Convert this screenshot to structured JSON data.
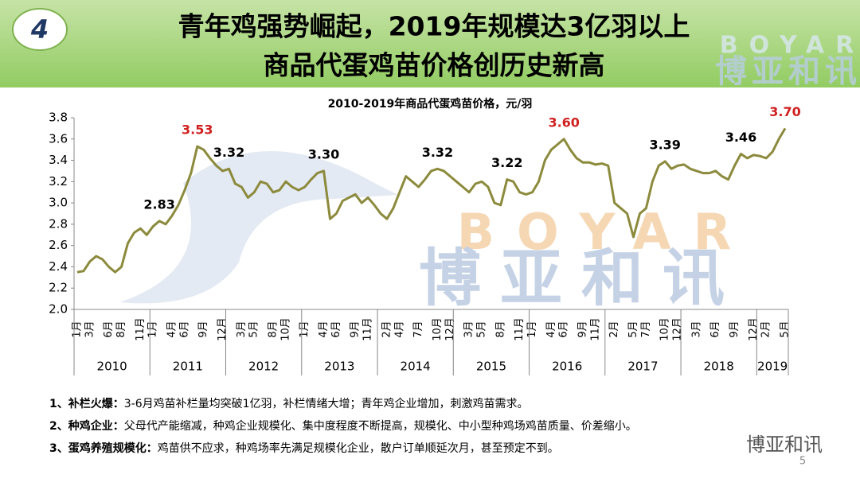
{
  "header": {
    "number": "4",
    "title_line1": "青年鸡强势崛起，2019年规模达3亿羽以上",
    "title_line2": "商品代蛋鸡苗价格创历史新高",
    "logo_en": "BOYAR",
    "logo_cn": "博亚和讯"
  },
  "watermark": {
    "en": "BOYAR",
    "cn": "博亚和讯"
  },
  "chart_data": {
    "type": "line",
    "title": "2010-2019年商品代蛋鸡苗价格，元/羽",
    "categories": [
      "1月",
      null,
      "3月",
      null,
      null,
      "6月",
      null,
      "8月",
      null,
      null,
      "11月",
      null,
      "1月",
      null,
      null,
      "4月",
      null,
      "6月",
      null,
      null,
      "9月",
      null,
      null,
      "12月",
      null,
      null,
      "3月",
      null,
      "5月",
      null,
      null,
      "8月",
      null,
      "10月",
      null,
      null,
      "1月",
      null,
      null,
      "4月",
      null,
      "6月",
      null,
      null,
      "9月",
      null,
      "11月",
      null,
      null,
      "2月",
      null,
      "4月",
      null,
      null,
      "7月",
      null,
      null,
      "10月",
      null,
      "12月",
      null,
      null,
      "3月",
      null,
      "5月",
      null,
      null,
      "8月",
      null,
      null,
      "11月",
      null,
      "1月",
      null,
      null,
      "4月",
      null,
      "6月",
      null,
      null,
      "9月",
      null,
      "11月",
      null,
      null,
      "2月",
      null,
      null,
      "5月",
      null,
      "7月",
      null,
      null,
      "10月",
      null,
      "12月",
      null,
      null,
      "3月",
      null,
      null,
      "6月",
      null,
      null,
      "9月",
      null,
      null,
      "12月",
      null,
      "2月",
      null,
      null,
      "5月"
    ],
    "groups": [
      {
        "label": "2010",
        "size": 12
      },
      {
        "label": "2011",
        "size": 12
      },
      {
        "label": "2012",
        "size": 12
      },
      {
        "label": "2013",
        "size": 12
      },
      {
        "label": "2014",
        "size": 12
      },
      {
        "label": "2015",
        "size": 12
      },
      {
        "label": "2016",
        "size": 12
      },
      {
        "label": "2017",
        "size": 12
      },
      {
        "label": "2018",
        "size": 12
      },
      {
        "label": "2019",
        "size": 5
      }
    ],
    "values": [
      2.35,
      2.36,
      2.45,
      2.5,
      2.47,
      2.4,
      2.35,
      2.4,
      2.62,
      2.72,
      2.76,
      2.7,
      2.78,
      2.83,
      2.8,
      2.88,
      2.98,
      3.12,
      3.28,
      3.53,
      3.5,
      3.42,
      3.35,
      3.3,
      3.32,
      3.18,
      3.15,
      3.05,
      3.1,
      3.2,
      3.18,
      3.1,
      3.12,
      3.2,
      3.15,
      3.12,
      3.15,
      3.22,
      3.28,
      3.3,
      2.85,
      2.9,
      3.02,
      3.05,
      3.08,
      3.0,
      3.05,
      2.98,
      2.9,
      2.85,
      2.95,
      3.1,
      3.25,
      3.2,
      3.15,
      3.22,
      3.3,
      3.32,
      3.3,
      3.25,
      3.2,
      3.15,
      3.1,
      3.18,
      3.2,
      3.15,
      3.0,
      2.98,
      3.22,
      3.2,
      3.1,
      3.08,
      3.1,
      3.2,
      3.4,
      3.5,
      3.55,
      3.6,
      3.5,
      3.42,
      3.38,
      3.38,
      3.36,
      3.37,
      3.35,
      3.0,
      2.95,
      2.9,
      2.68,
      2.9,
      2.95,
      3.2,
      3.35,
      3.39,
      3.32,
      3.35,
      3.36,
      3.32,
      3.3,
      3.28,
      3.28,
      3.3,
      3.25,
      3.22,
      3.35,
      3.46,
      3.42,
      3.45,
      3.44,
      3.42,
      3.48,
      3.6,
      3.7
    ],
    "value_labels": [
      null,
      null,
      null,
      null,
      null,
      null,
      null,
      null,
      null,
      null,
      null,
      null,
      null,
      "2.83",
      null,
      null,
      null,
      null,
      null,
      "3.53",
      null,
      null,
      null,
      null,
      "3.32",
      null,
      null,
      null,
      null,
      null,
      null,
      null,
      null,
      null,
      null,
      null,
      null,
      null,
      null,
      "3.30",
      null,
      null,
      null,
      null,
      null,
      null,
      null,
      null,
      null,
      null,
      null,
      null,
      null,
      null,
      null,
      null,
      null,
      "3.32",
      null,
      null,
      null,
      null,
      null,
      null,
      null,
      null,
      null,
      null,
      "3.22",
      null,
      null,
      null,
      null,
      null,
      null,
      null,
      null,
      "3.60",
      null,
      null,
      null,
      null,
      null,
      null,
      null,
      null,
      null,
      null,
      null,
      null,
      null,
      null,
      null,
      "3.39",
      null,
      null,
      null,
      null,
      null,
      null,
      null,
      null,
      null,
      null,
      null,
      "3.46",
      null,
      null,
      null,
      null,
      null,
      null,
      "3.70"
    ],
    "value_label_colors": [
      null,
      null,
      null,
      null,
      null,
      null,
      null,
      null,
      null,
      null,
      null,
      null,
      null,
      "#000000",
      null,
      null,
      null,
      null,
      null,
      "#d02020",
      null,
      null,
      null,
      null,
      "#000000",
      null,
      null,
      null,
      null,
      null,
      null,
      null,
      null,
      null,
      null,
      null,
      null,
      null,
      null,
      "#000000",
      null,
      null,
      null,
      null,
      null,
      null,
      null,
      null,
      null,
      null,
      null,
      null,
      null,
      null,
      null,
      null,
      null,
      "#000000",
      null,
      null,
      null,
      null,
      null,
      null,
      null,
      null,
      null,
      null,
      "#000000",
      null,
      null,
      null,
      null,
      null,
      null,
      null,
      null,
      "#d02020",
      null,
      null,
      null,
      null,
      null,
      null,
      null,
      null,
      null,
      null,
      null,
      null,
      null,
      null,
      null,
      "#000000",
      null,
      null,
      null,
      null,
      null,
      null,
      null,
      null,
      null,
      null,
      null,
      "#000000",
      null,
      null,
      null,
      null,
      null,
      null,
      "#d02020"
    ],
    "color": "#8c8a3c",
    "ylim": [
      2.0,
      3.8
    ],
    "yticks": [
      {
        "value": 2,
        "label": "2.0"
      },
      2.2,
      2.4,
      2.6,
      2.8,
      {
        "value": 3,
        "label": "3.0"
      },
      3.2,
      3.4,
      3.6,
      3.8
    ]
  },
  "notes": [
    {
      "label": "1、补栏火爆：",
      "text": "3-6月鸡苗补栏量均突破1亿羽，补栏情绪大增；青年鸡企业增加，刺激鸡苗需求。"
    },
    {
      "label": "2、种鸡企业：",
      "text": "父母代产能缩减，种鸡企业规模化、集中度程度不断提高，规模化、中小型种鸡场鸡苗质量、价差缩小。"
    },
    {
      "label": "3、蛋鸡养殖规模化：",
      "text": "鸡苗供不应求，种鸡场率先满足规模化企业，散户订单顺延次月，甚至预定不到。"
    }
  ],
  "footer": {
    "brand": "博亚和讯",
    "page": "5"
  }
}
